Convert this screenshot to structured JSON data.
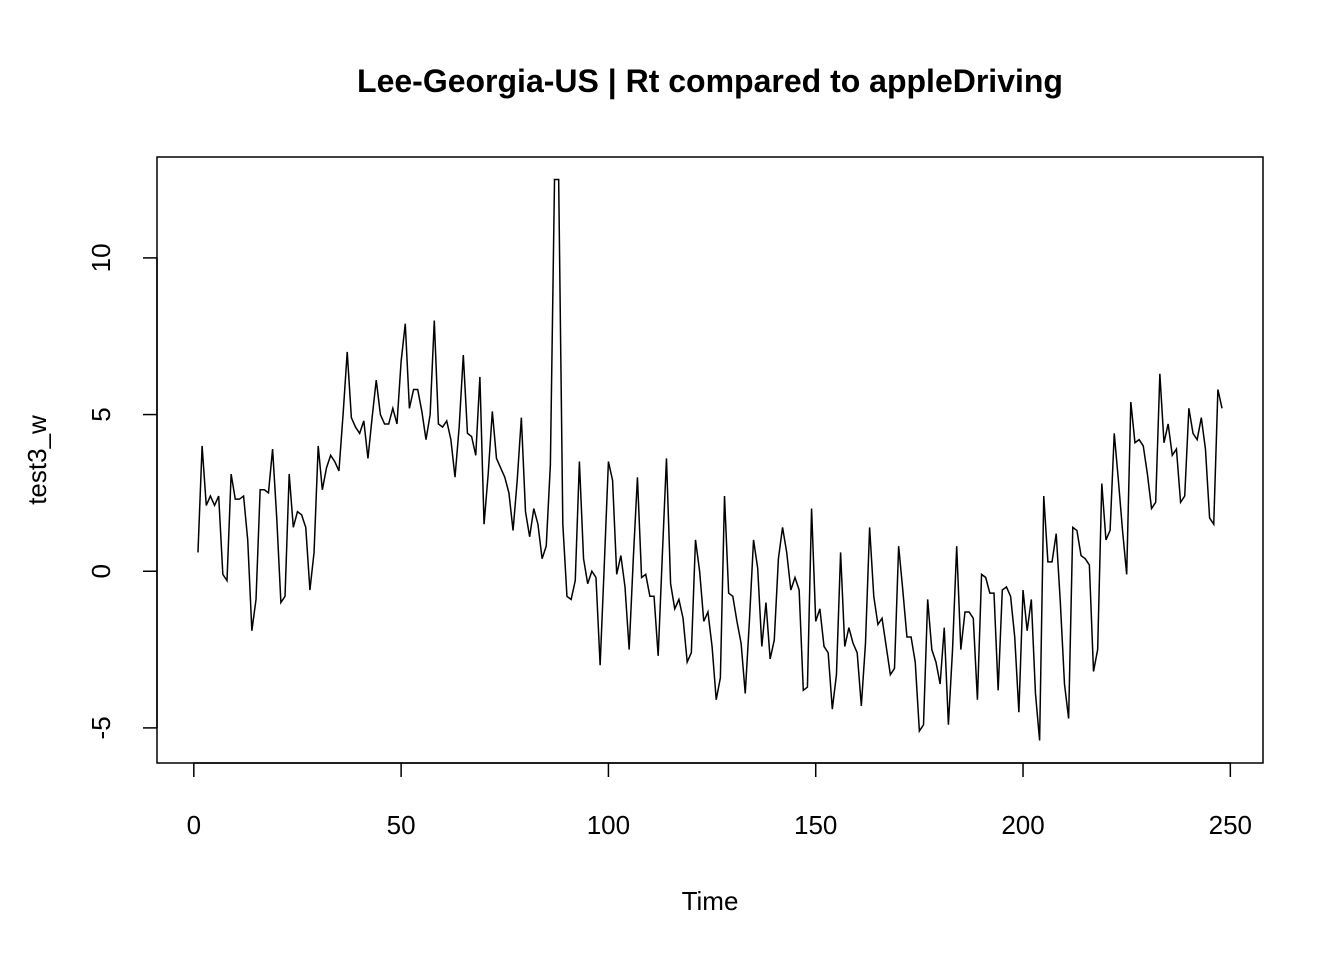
{
  "chart_data": {
    "type": "line",
    "title": "Lee-Georgia-US | Rt compared to appleDriving",
    "x_label": "Time",
    "y_label": "test3_w",
    "xlim": [
      -8.88,
      257.88
    ],
    "ylim": [
      -6.12,
      13.22
    ],
    "xticks": [
      0,
      50,
      100,
      150,
      200,
      250
    ],
    "yticks": [
      -5,
      0,
      5,
      10
    ],
    "series": [
      {
        "name": "test3_w",
        "color": "#000000",
        "x": [
          1,
          2,
          3,
          4,
          5,
          6,
          7,
          8,
          9,
          10,
          11,
          12,
          13,
          14,
          15,
          16,
          17,
          18,
          19,
          20,
          21,
          22,
          23,
          24,
          25,
          26,
          27,
          28,
          29,
          30,
          31,
          32,
          33,
          34,
          35,
          36,
          37,
          38,
          39,
          40,
          41,
          42,
          43,
          44,
          45,
          46,
          47,
          48,
          49,
          50,
          51,
          52,
          53,
          54,
          55,
          56,
          57,
          58,
          59,
          60,
          61,
          62,
          63,
          64,
          65,
          66,
          67,
          68,
          69,
          70,
          71,
          72,
          73,
          74,
          75,
          76,
          77,
          78,
          79,
          80,
          81,
          82,
          83,
          84,
          85,
          86,
          87,
          88,
          89,
          90,
          91,
          92,
          93,
          94,
          95,
          96,
          97,
          98,
          99,
          100,
          101,
          102,
          103,
          104,
          105,
          106,
          107,
          108,
          109,
          110,
          111,
          112,
          113,
          114,
          115,
          116,
          117,
          118,
          119,
          120,
          121,
          122,
          123,
          124,
          125,
          126,
          127,
          128,
          129,
          130,
          131,
          132,
          133,
          134,
          135,
          136,
          137,
          138,
          139,
          140,
          141,
          142,
          143,
          144,
          145,
          146,
          147,
          148,
          149,
          150,
          151,
          152,
          153,
          154,
          155,
          156,
          157,
          158,
          159,
          160,
          161,
          162,
          163,
          164,
          165,
          166,
          167,
          168,
          169,
          170,
          171,
          172,
          173,
          174,
          175,
          176,
          177,
          178,
          179,
          180,
          181,
          182,
          183,
          184,
          185,
          186,
          187,
          188,
          189,
          190,
          191,
          192,
          193,
          194,
          195,
          196,
          197,
          198,
          199,
          200,
          201,
          202,
          203,
          204,
          205,
          206,
          207,
          208,
          209,
          210,
          211,
          212,
          213,
          214,
          215,
          216,
          217,
          218,
          219,
          220,
          221,
          222,
          223,
          224,
          225,
          226,
          227,
          228,
          229,
          230,
          231,
          232,
          233,
          234,
          235,
          236,
          237,
          238,
          239,
          240,
          241,
          242,
          243,
          244,
          245,
          246,
          247,
          248
        ],
        "values": [
          0.6,
          4.0,
          2.1,
          2.4,
          2.1,
          2.4,
          -0.1,
          -0.3,
          3.1,
          2.3,
          2.3,
          2.4,
          1.0,
          -1.9,
          -0.9,
          2.6,
          2.6,
          2.5,
          3.9,
          1.7,
          -1.0,
          -0.8,
          3.1,
          1.4,
          1.9,
          1.8,
          1.4,
          -0.6,
          0.6,
          4.0,
          2.6,
          3.3,
          3.7,
          3.5,
          3.2,
          5.0,
          7.0,
          4.9,
          4.6,
          4.4,
          4.8,
          3.6,
          4.9,
          6.1,
          5.0,
          4.7,
          4.7,
          5.2,
          4.7,
          6.7,
          7.9,
          5.2,
          5.8,
          5.8,
          5.1,
          4.2,
          5.0,
          8.0,
          4.7,
          4.6,
          4.8,
          4.2,
          3.0,
          4.6,
          6.9,
          4.4,
          4.3,
          3.7,
          6.2,
          1.5,
          3.1,
          5.1,
          3.6,
          3.3,
          3.0,
          2.5,
          1.3,
          2.9,
          4.9,
          1.9,
          1.1,
          2.0,
          1.5,
          0.4,
          0.8,
          3.4,
          12.5,
          12.5,
          1.5,
          -0.8,
          -0.9,
          -0.3,
          3.5,
          0.4,
          -0.4,
          0.0,
          -0.2,
          -3.0,
          0.2,
          3.5,
          2.9,
          -0.1,
          0.5,
          -0.5,
          -2.5,
          0.4,
          3.0,
          -0.2,
          -0.1,
          -0.8,
          -0.8,
          -2.7,
          0.5,
          3.6,
          -0.4,
          -1.2,
          -0.9,
          -1.5,
          -2.9,
          -2.6,
          1.0,
          0.0,
          -1.6,
          -1.3,
          -2.4,
          -4.1,
          -3.4,
          2.4,
          -0.7,
          -0.8,
          -1.6,
          -2.3,
          -3.9,
          -1.6,
          1.0,
          0.1,
          -2.4,
          -1.0,
          -2.8,
          -2.2,
          0.4,
          1.4,
          0.6,
          -0.6,
          -0.2,
          -0.6,
          -3.8,
          -3.7,
          2.0,
          -1.6,
          -1.2,
          -2.4,
          -2.6,
          -4.4,
          -3.3,
          0.6,
          -2.4,
          -1.8,
          -2.3,
          -2.6,
          -4.3,
          -2.3,
          1.4,
          -0.8,
          -1.7,
          -1.5,
          -2.4,
          -3.3,
          -3.1,
          0.8,
          -0.6,
          -2.1,
          -2.1,
          -2.9,
          -5.1,
          -4.9,
          -0.9,
          -2.5,
          -2.9,
          -3.6,
          -1.8,
          -4.9,
          -2.5,
          0.8,
          -2.5,
          -1.3,
          -1.3,
          -1.5,
          -4.1,
          -0.1,
          -0.2,
          -0.7,
          -0.7,
          -3.8,
          -0.6,
          -0.5,
          -0.8,
          -2.1,
          -4.5,
          -0.6,
          -1.9,
          -0.9,
          -3.9,
          -5.4,
          2.4,
          0.3,
          0.3,
          1.2,
          -1.0,
          -3.6,
          -4.7,
          1.4,
          1.3,
          0.5,
          0.4,
          0.2,
          -3.2,
          -2.5,
          2.8,
          1.0,
          1.3,
          4.4,
          2.9,
          1.3,
          -0.1,
          5.4,
          4.1,
          4.2,
          4.0,
          3.1,
          2.0,
          2.2,
          6.3,
          4.1,
          4.7,
          3.7,
          3.9,
          2.2,
          2.4,
          5.2,
          4.4,
          4.2,
          4.9,
          3.9,
          1.7,
          1.5,
          5.8,
          5.2
        ]
      }
    ]
  }
}
